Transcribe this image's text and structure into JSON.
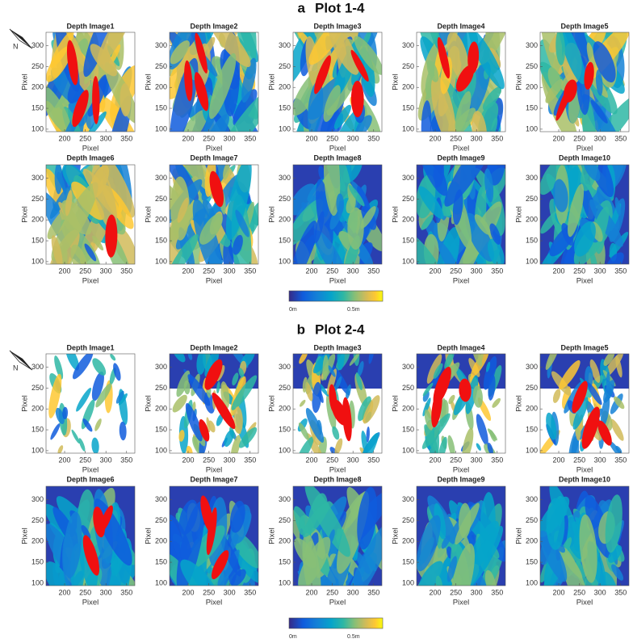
{
  "axes": {
    "xlabel": "Pixel",
    "ylabel": "Pixel",
    "xlim": [
      155,
      370
    ],
    "ylim": [
      94,
      332
    ],
    "xticks": [
      200,
      250,
      300,
      350
    ],
    "yticks": [
      100,
      150,
      200,
      250,
      300
    ]
  },
  "sections": [
    {
      "label": "a",
      "title": "Plot 1-4",
      "north": "N",
      "panels": [
        "Depth Image1",
        "Depth Image2",
        "Depth Image3",
        "Depth Image4",
        "Depth Image5",
        "Depth Image6",
        "Depth Image7",
        "Depth Image8",
        "Depth Image9",
        "Depth Image10"
      ],
      "colorbar": {
        "min_label": "0m",
        "mid_label": "0.5m"
      }
    },
    {
      "label": "b",
      "title": "Plot 2-4",
      "north": "N",
      "panels": [
        "Depth Image1",
        "Depth Image2",
        "Depth Image3",
        "Depth Image4",
        "Depth Image5",
        "Depth Image6",
        "Depth Image7",
        "Depth Image8",
        "Depth Image9",
        "Depth Image10"
      ],
      "colorbar": {
        "min_label": "0m",
        "mid_label": "0.5m"
      }
    }
  ]
}
